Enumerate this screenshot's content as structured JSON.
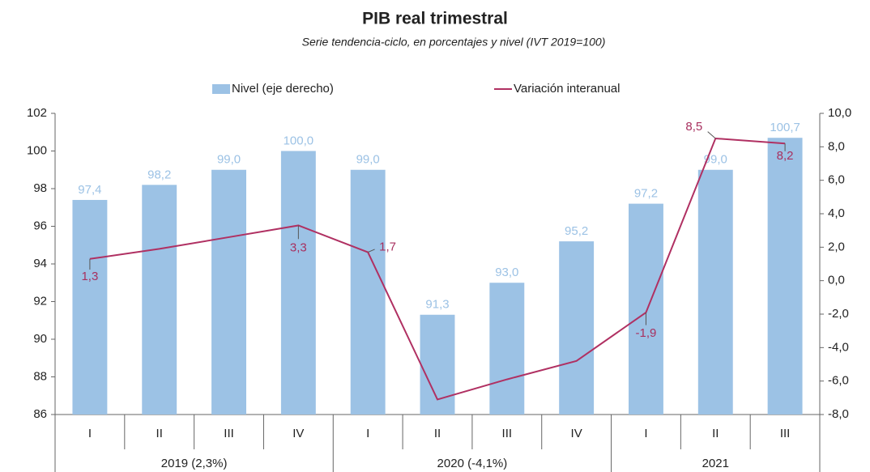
{
  "chart_data": {
    "type": "bar+line",
    "title": "PIB real trimestral",
    "subtitle": "Serie tendencia-ciclo, en porcentajes y nivel (IVT 2019=100)",
    "groups": [
      {
        "label": "2019 (2,3%)",
        "categories": [
          "I",
          "II",
          "III",
          "IV"
        ]
      },
      {
        "label": "2020 (-4,1%)",
        "categories": [
          "I",
          "II",
          "III",
          "IV"
        ]
      },
      {
        "label": "2021",
        "categories": [
          "I",
          "II",
          "III"
        ]
      }
    ],
    "series": [
      {
        "name": "Nivel (eje derecho)",
        "type": "bar",
        "color": "#9cc2e5",
        "values": [
          97.4,
          98.2,
          99.0,
          100.0,
          99.0,
          91.3,
          93.0,
          95.2,
          97.2,
          99.0,
          100.7
        ],
        "value_labels": [
          "97,4",
          "98,2",
          "99,0",
          "100,0",
          "99,0",
          "91,3",
          "93,0",
          "95,2",
          "97,2",
          "99,0",
          "100,7"
        ]
      },
      {
        "name": "Variación interanual",
        "type": "line",
        "axis": "y2",
        "color": "#b03062",
        "values": [
          1.3,
          1.9,
          2.6,
          3.3,
          1.7,
          -7.1,
          -5.9,
          -4.8,
          -1.9,
          8.5,
          8.2
        ],
        "value_labels": [
          "1,3",
          null,
          null,
          "3,3",
          "1,7",
          null,
          null,
          null,
          "-1,9",
          "8,5",
          "8,2"
        ]
      }
    ],
    "ylim": [
      86,
      102
    ],
    "yticks": [
      86,
      88,
      90,
      92,
      94,
      96,
      98,
      100,
      102
    ],
    "y2lim": [
      -8,
      10
    ],
    "y2ticks": [
      {
        "value": -8,
        "label": "-8,0"
      },
      {
        "value": -6,
        "label": "-6,0"
      },
      {
        "value": -4,
        "label": "-4,0"
      },
      {
        "value": -2,
        "label": "-2,0"
      },
      {
        "value": 0,
        "label": "0,0"
      },
      {
        "value": 2,
        "label": "2,0"
      },
      {
        "value": 4,
        "label": "4,0"
      },
      {
        "value": 6,
        "label": "6,0"
      },
      {
        "value": 8,
        "label": "8,0"
      },
      {
        "value": 10,
        "label": "10,0"
      }
    ],
    "legend": "top"
  }
}
